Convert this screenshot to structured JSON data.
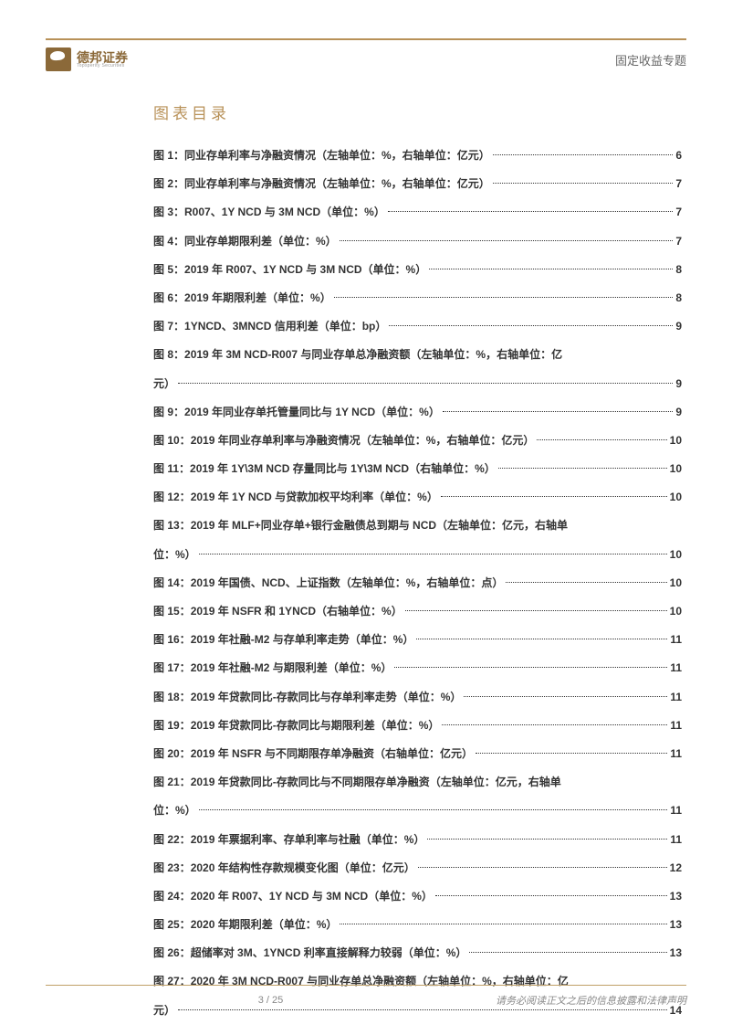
{
  "header": {
    "logo_cn": "德邦证券",
    "logo_en": "Topsperity Securities",
    "category": "固定收益专题"
  },
  "section_title": "图表目录",
  "toc": [
    {
      "label": "图 1：",
      "text": "同业存单利率与净融资情况（左轴单位：%，右轴单位：亿元）",
      "page": "6"
    },
    {
      "label": "图 2：",
      "text": "同业存单利率与净融资情况（左轴单位：%，右轴单位：亿元）",
      "page": "7"
    },
    {
      "label": "图 3：",
      "text": " R007、1Y NCD 与 3M NCD（单位：%）",
      "page": "7"
    },
    {
      "label": "图 4：",
      "text": "同业存单期限利差（单位：%）",
      "page": "7"
    },
    {
      "label": "图 5：",
      "text": "2019 年 R007、1Y NCD 与 3M NCD（单位：%）",
      "page": "8"
    },
    {
      "label": "图 6：",
      "text": "2019 年期限利差（单位：%）",
      "page": "8"
    },
    {
      "label": "图 7：",
      "text": "1YNCD、3MNCD 信用利差（单位：bp）",
      "page": "9"
    },
    {
      "label": "图 8：",
      "text": "2019 年 3M NCD-R007 与同业存单总净融资额（左轴单位：%，右轴单位：亿",
      "text2": "元）",
      "page": "9",
      "wrap": true
    },
    {
      "label": "图 9：",
      "text": "2019 年同业存单托管量同比与 1Y NCD（单位：%）",
      "page": "9"
    },
    {
      "label": "图 10：",
      "text": "2019 年同业存单利率与净融资情况（左轴单位：%，右轴单位：亿元）",
      "page": "10"
    },
    {
      "label": "图 11：",
      "text": "2019 年 1Y\\3M NCD 存量同比与 1Y\\3M NCD（右轴单位：%）",
      "page": "10"
    },
    {
      "label": "图 12：",
      "text": "2019 年 1Y NCD 与贷款加权平均利率（单位：%）",
      "page": "10"
    },
    {
      "label": "图 13：",
      "text": "2019 年 MLF+同业存单+银行金融债总到期与 NCD（左轴单位：亿元，右轴单",
      "text2": "位：%）",
      "page": "10",
      "wrap": true
    },
    {
      "label": "图 14：",
      "text": "2019 年国债、NCD、上证指数（左轴单位：%，右轴单位：点）",
      "page": "10"
    },
    {
      "label": "图 15：",
      "text": "2019 年 NSFR 和 1YNCD（右轴单位：%）",
      "page": "10"
    },
    {
      "label": "图 16：",
      "text": "2019 年社融-M2 与存单利率走势（单位：%）",
      "page": "11"
    },
    {
      "label": "图 17：",
      "text": "2019 年社融-M2 与期限利差（单位：%）",
      "page": "11"
    },
    {
      "label": "图 18：",
      "text": "2019 年贷款同比-存款同比与存单利率走势（单位：%）",
      "page": "11"
    },
    {
      "label": "图 19：",
      "text": "2019 年贷款同比-存款同比与期限利差（单位：%）",
      "page": "11"
    },
    {
      "label": "图 20：",
      "text": "2019 年 NSFR 与不同期限存单净融资（右轴单位：亿元）",
      "page": "11"
    },
    {
      "label": "图 21：",
      "text": "2019 年贷款同比-存款同比与不同期限存单净融资（左轴单位：亿元，右轴单",
      "text2": "位：%）",
      "page": "11",
      "wrap": true
    },
    {
      "label": "图 22：",
      "text": "2019 年票据利率、存单利率与社融（单位：%）",
      "page": "11"
    },
    {
      "label": "图 23：",
      "text": "2020 年结构性存款规模变化图（单位：亿元）",
      "page": "12"
    },
    {
      "label": "图 24：",
      "text": "2020 年 R007、1Y NCD 与 3M NCD（单位：%）",
      "page": "13"
    },
    {
      "label": "图 25：",
      "text": "2020 年期限利差（单位：%）",
      "page": "13"
    },
    {
      "label": "图 26：",
      "text": "超储率对 3M、1YNCD 利率直接解释力较弱（单位：%）",
      "page": "13"
    },
    {
      "label": "图 27：",
      "text": "2020 年 3M NCD-R007 与同业存单总净融资额（左轴单位：%，右轴单位：亿",
      "text2": "元）",
      "page": "14",
      "wrap": true
    }
  ],
  "footer": {
    "page": "3 / 25",
    "disclaimer": "请务必阅读正文之后的信息披露和法律声明"
  }
}
